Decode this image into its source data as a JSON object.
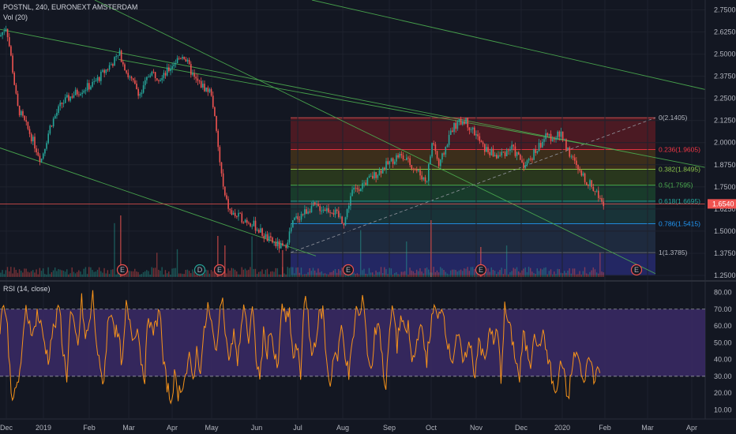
{
  "main_chart": {
    "legend": "POSTNL, 240, EURONEXT AMSTERDAM",
    "volume_label": "Vol (20)",
    "y_ticks": [
      "2.7500",
      "2.6250",
      "2.5000",
      "2.3750",
      "2.2500",
      "2.1250",
      "2.0000",
      "1.8750",
      "1.7500",
      "1.6250",
      "1.5000",
      "1.3750",
      "1.2500"
    ],
    "last_price": "1.6540",
    "last_price_value": 1.654,
    "ylim": [
      1.25,
      2.77
    ],
    "fib_levels": [
      {
        "label": "0(2.1405)",
        "value": 2.1405,
        "fill": "#7a1e24",
        "line": "#e05252",
        "text_color": "#b2b5be"
      },
      {
        "label": "0.236(1.9605)",
        "value": 1.9605,
        "fill": "#5e4216",
        "line": "#f23645",
        "text_color": "#f23645"
      },
      {
        "label": "0.382(1.8495)",
        "value": 1.8495,
        "fill": "#3d5219",
        "line": "#8bc34a",
        "text_color": "#8bc34a"
      },
      {
        "label": "0.5(1.7595)",
        "value": 1.7595,
        "fill": "#1e5a33",
        "line": "#4caf50",
        "text_color": "#4caf50"
      },
      {
        "label": "0.618(1.6695)",
        "value": 1.6695,
        "fill": "#1d4a4a",
        "line": "#26a69a",
        "text_color": "#26a69a"
      },
      {
        "label": "0.786(1.5415)",
        "value": 1.5415,
        "fill": "#283a55",
        "line": "#2196f3",
        "text_color": "#2196f3"
      },
      {
        "label": "1(1.3785)",
        "value": 1.3785,
        "fill": "#2a2e7a",
        "line": "#787b86",
        "text_color": "#b2b5be"
      }
    ],
    "event_markers": [
      {
        "text": "E",
        "type": "earnings"
      },
      {
        "text": "D",
        "type": "dividend"
      },
      {
        "text": "E",
        "type": "earnings"
      },
      {
        "text": "E",
        "type": "earnings"
      },
      {
        "text": "E",
        "type": "earnings"
      },
      {
        "text": "E",
        "type": "earnings"
      }
    ]
  },
  "rsi": {
    "legend": "RSI (14, close)",
    "y_ticks": [
      "80.00",
      "70.00",
      "60.00",
      "50.00",
      "40.00",
      "30.00",
      "20.00",
      "10.00"
    ],
    "upper": 70,
    "lower": 30,
    "ylim": [
      5,
      84
    ]
  },
  "x_axis": {
    "labels": [
      "Dec",
      "2019",
      "Feb",
      "Mar",
      "Apr",
      "May",
      "Jun",
      "Jul",
      "Aug",
      "Sep",
      "Oct",
      "Nov",
      "Dec",
      "2020",
      "Feb",
      "Mar",
      "Apr"
    ]
  },
  "colors": {
    "background": "#131722",
    "up": "#26a69a",
    "down": "#ef5350",
    "trendline": "#4caf50",
    "rsi_line": "#f7931a",
    "rsi_band": "#3b2a66"
  },
  "chart_data": [
    {
      "type": "candlestick",
      "title": "POSTNL, 240, EURONEXT AMSTERDAM",
      "x_categories": [
        "Dec",
        "2019",
        "Feb",
        "Mar",
        "Apr",
        "May",
        "Jun",
        "Jul",
        "Aug",
        "Sep",
        "Oct",
        "Nov",
        "Dec",
        "2020",
        "Feb",
        "Mar",
        "Apr"
      ],
      "ylim": [
        1.25,
        2.77
      ],
      "price_path": [
        {
          "t": "Dec",
          "v": 2.6
        },
        {
          "t": "Dec",
          "v": 2.66
        },
        {
          "t": "Dec",
          "v": 2.48
        },
        {
          "t": "Dec",
          "v": 2.2
        },
        {
          "t": "Dec",
          "v": 2.05
        },
        {
          "t": "2019",
          "v": 1.9
        },
        {
          "t": "2019",
          "v": 2.1
        },
        {
          "t": "2019",
          "v": 2.22
        },
        {
          "t": "Feb",
          "v": 2.27
        },
        {
          "t": "Feb",
          "v": 2.3
        },
        {
          "t": "Feb",
          "v": 2.33
        },
        {
          "t": "Mar",
          "v": 2.5
        },
        {
          "t": "Mar",
          "v": 2.38
        },
        {
          "t": "Mar",
          "v": 2.27
        },
        {
          "t": "Apr",
          "v": 2.4
        },
        {
          "t": "Apr",
          "v": 2.36
        },
        {
          "t": "Apr",
          "v": 2.44
        },
        {
          "t": "Apr",
          "v": 2.5
        },
        {
          "t": "Apr",
          "v": 2.36
        },
        {
          "t": "May",
          "v": 2.32
        },
        {
          "t": "May",
          "v": 2.28
        },
        {
          "t": "May",
          "v": 1.9
        },
        {
          "t": "May",
          "v": 1.7
        },
        {
          "t": "Jun",
          "v": 1.6
        },
        {
          "t": "Jun",
          "v": 1.55
        },
        {
          "t": "Jun",
          "v": 1.45
        },
        {
          "t": "Jul",
          "v": 1.4
        },
        {
          "t": "Jul",
          "v": 1.56
        },
        {
          "t": "Jul",
          "v": 1.64
        },
        {
          "t": "Aug",
          "v": 1.62
        },
        {
          "t": "Aug",
          "v": 1.55
        },
        {
          "t": "Aug",
          "v": 1.72
        },
        {
          "t": "Sep",
          "v": 1.8
        },
        {
          "t": "Sep",
          "v": 1.93
        },
        {
          "t": "Sep",
          "v": 1.88
        },
        {
          "t": "Oct",
          "v": 1.78
        },
        {
          "t": "Oct",
          "v": 2.02
        },
        {
          "t": "Oct",
          "v": 1.86
        },
        {
          "t": "Oct",
          "v": 2.08
        },
        {
          "t": "Nov",
          "v": 2.13
        },
        {
          "t": "Nov",
          "v": 2.05
        },
        {
          "t": "Nov",
          "v": 1.97
        },
        {
          "t": "Dec",
          "v": 1.92
        },
        {
          "t": "Dec",
          "v": 1.97
        },
        {
          "t": "Dec",
          "v": 1.87
        },
        {
          "t": "Dec",
          "v": 2.03
        },
        {
          "t": "2020",
          "v": 2.04
        },
        {
          "t": "2020",
          "v": 1.93
        },
        {
          "t": "2020",
          "v": 1.82
        },
        {
          "t": "2020",
          "v": 1.74
        },
        {
          "t": "Feb",
          "v": 1.654
        }
      ],
      "last_price": 1.654
    },
    {
      "type": "line",
      "title": "RSI (14, close)",
      "ylim": [
        5,
        84
      ],
      "levels": [
        70,
        30
      ],
      "values": [
        60,
        75,
        58,
        22,
        18,
        28,
        45,
        70,
        62,
        55,
        68,
        60,
        50,
        40,
        55,
        62,
        72,
        45,
        30,
        68,
        58,
        48,
        75,
        52,
        60,
        78,
        50,
        32,
        28,
        60,
        70,
        58,
        52,
        36,
        72,
        60,
        52,
        62,
        40,
        30,
        68,
        55,
        60,
        72,
        38,
        25,
        15,
        30,
        20,
        25,
        30,
        40,
        28,
        45,
        35,
        55,
        72,
        60,
        45,
        60,
        80,
        50,
        40,
        58,
        35,
        62,
        72,
        50,
        70,
        42,
        28,
        55,
        45,
        60,
        40,
        35,
        75,
        62,
        68,
        40,
        48,
        30,
        78,
        65,
        42,
        52,
        65,
        70,
        38,
        25,
        45,
        40,
        60,
        45,
        30,
        50,
        70,
        65,
        78,
        45,
        32,
        55,
        65,
        40,
        22,
        58,
        72,
        48,
        66,
        55,
        60,
        38,
        45,
        62,
        52,
        40,
        58,
        72,
        62,
        74,
        60,
        45,
        40,
        55,
        48,
        35,
        50,
        45,
        30,
        55,
        42,
        40,
        62,
        48,
        58,
        30,
        70,
        62,
        52,
        40,
        28,
        55,
        45,
        38,
        60,
        44,
        56,
        48,
        38,
        25,
        18,
        40,
        30,
        15,
        32,
        45,
        40,
        25,
        35,
        42,
        30,
        35,
        28
      ]
    }
  ]
}
